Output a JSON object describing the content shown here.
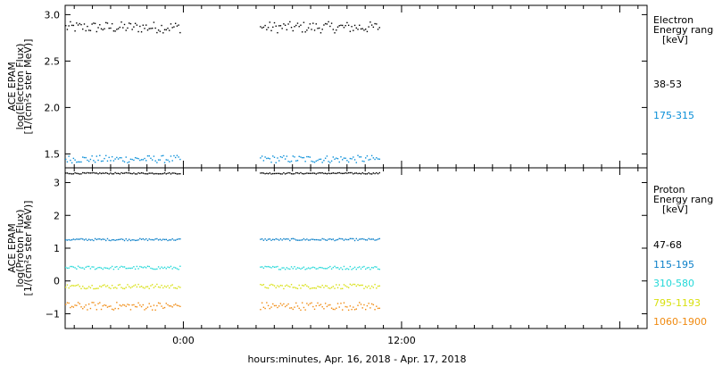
{
  "chart_data": [
    {
      "type": "scatter",
      "panel": "electron",
      "ylabel": [
        "ACE EPAM",
        "log(Electron Flux)",
        "[1/(cm²s ster MeV)]"
      ],
      "ylim": [
        1.35,
        3.1
      ],
      "yticks": [
        1.5,
        2.0,
        2.5,
        3.0
      ],
      "ytick_labels": [
        "1.5",
        "2.0",
        "2.5",
        "3.0"
      ],
      "legend_title": [
        "Electron",
        "Energy ranges",
        "[keV]"
      ],
      "x_gap": [
        -0.2,
        4.2
      ],
      "series": [
        {
          "name": "38-53",
          "color": "#000000",
          "level": 2.87,
          "jitter": 0.06
        },
        {
          "name": "175-315",
          "color": "#0a8fd8",
          "level": 1.45,
          "jitter": 0.04
        }
      ]
    },
    {
      "type": "scatter",
      "panel": "proton",
      "ylabel": [
        "ACE EPAM",
        "log(Proton Flux)",
        "[1/(cm²s ster MeV)]"
      ],
      "ylim": [
        -1.45,
        3.45
      ],
      "yticks": [
        -1,
        0,
        1,
        2,
        3
      ],
      "ytick_labels": [
        "−1",
        "0",
        "1",
        "2",
        "3"
      ],
      "legend_title": [
        "Proton",
        "Energy ranges",
        "[keV]"
      ],
      "x_gap": [
        -0.2,
        4.2
      ],
      "series": [
        {
          "name": "47-68",
          "color": "#000000",
          "level": 3.3,
          "jitter": 0.02
        },
        {
          "name": "115-195",
          "color": "#0a7fc8",
          "level": 1.28,
          "jitter": 0.03
        },
        {
          "name": "310-580",
          "color": "#22d8d8",
          "level": 0.42,
          "jitter": 0.05
        },
        {
          "name": "795-1193",
          "color": "#d8e010",
          "level": -0.15,
          "jitter": 0.07
        },
        {
          "name": "1060-1900",
          "color": "#f08a10",
          "level": -0.75,
          "jitter": 0.12
        }
      ]
    }
  ],
  "x_axis": {
    "xlim": [
      -6.5,
      25.5
    ],
    "data_range": [
      -6.5,
      10.8
    ],
    "tick_hours": [
      0,
      12
    ],
    "tick_labels": [
      "0:00",
      "12:00"
    ],
    "label": "hours:minutes, Apr. 16, 2018 - Apr. 17, 2018"
  }
}
